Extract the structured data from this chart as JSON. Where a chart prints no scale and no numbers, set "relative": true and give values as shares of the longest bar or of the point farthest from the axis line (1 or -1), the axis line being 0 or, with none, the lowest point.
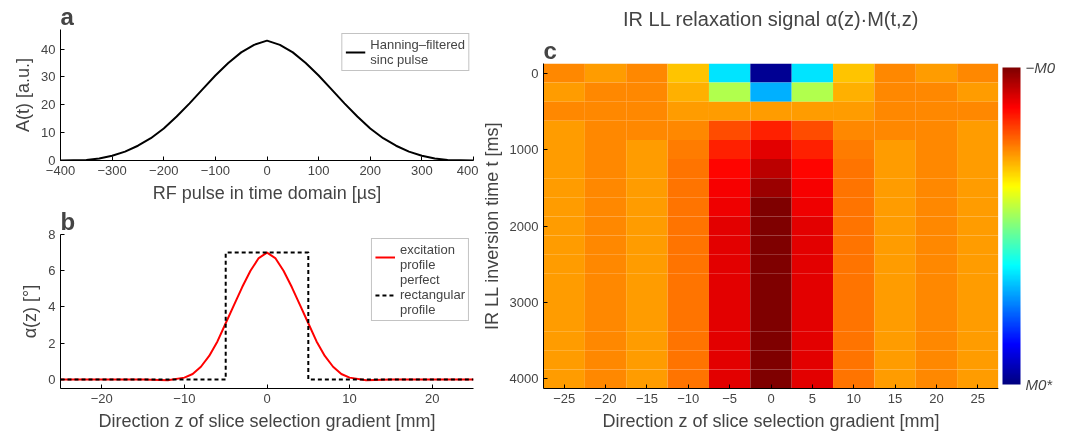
{
  "chart_data": [
    {
      "type": "line",
      "xlabel": "RF pulse in time domain [µs]",
      "ylabel": "A(t) [a.u.]",
      "annotations": [
        "a"
      ],
      "series": [
        {
          "name": "Hanning–filtered sinc pulse",
          "color": "#000000",
          "x": [
            -400,
            -350,
            -325,
            -300,
            -275,
            -250,
            -225,
            -200,
            -175,
            -150,
            -125,
            -100,
            -75,
            -50,
            -25,
            0,
            25,
            50,
            75,
            100,
            125,
            150,
            175,
            200,
            225,
            250,
            275,
            300,
            325,
            350,
            400
          ],
          "values": [
            0,
            0.2,
            0.7,
            1.7,
            3.2,
            5.3,
            8,
            11.5,
            15.8,
            20.5,
            25.5,
            30.5,
            35,
            38.8,
            41.5,
            43,
            41.5,
            38.8,
            35,
            30.5,
            25.5,
            20.5,
            15.8,
            11.5,
            8,
            5.3,
            3.2,
            1.7,
            0.7,
            0.2,
            0
          ]
        }
      ],
      "xlim": [
        -400,
        400
      ],
      "xticks": [
        -400,
        -300,
        -200,
        -100,
        0,
        100,
        200,
        300,
        400
      ],
      "ylim": [
        0,
        47
      ],
      "yticks": [
        0,
        10,
        20,
        30,
        40
      ],
      "grid": false,
      "legend": "top right",
      "line_style": "solid"
    },
    {
      "type": "line",
      "xlabel": "Direction z of slice selection gradient [mm]",
      "ylabel": "α(z) [°]",
      "annotations": [
        "b"
      ],
      "series": [
        {
          "name": "excitation profile",
          "color": "#ff0000",
          "line_style": "solid",
          "x": [
            -25,
            -15,
            -12,
            -10,
            -9,
            -8,
            -7,
            -6,
            -5,
            -4,
            -3,
            -2,
            -1,
            0,
            1,
            2,
            3,
            4,
            5,
            6,
            7,
            8,
            9,
            10,
            12,
            15,
            25
          ],
          "values": [
            0,
            0,
            -0.05,
            0.1,
            0.3,
            0.7,
            1.3,
            2.1,
            3.1,
            4.1,
            5.1,
            6,
            6.7,
            7,
            6.7,
            6,
            5.1,
            4.1,
            3.1,
            2.1,
            1.3,
            0.7,
            0.3,
            0.1,
            -0.05,
            0,
            0
          ]
        },
        {
          "name": "perfect rectangular profile",
          "color": "#000000",
          "line_style": "dashed",
          "x": [
            -25,
            -5,
            -5,
            5,
            5,
            25
          ],
          "values": [
            0,
            0,
            7,
            7,
            0,
            0
          ]
        }
      ],
      "xlim": [
        -25,
        25
      ],
      "xticks": [
        -20,
        -10,
        0,
        10,
        20
      ],
      "ylim": [
        -0.5,
        8
      ],
      "yticks": [
        0,
        2,
        4,
        6,
        8
      ],
      "grid": false,
      "legend": "top right"
    },
    {
      "type": "heatmap",
      "title": "IR LL relaxation signal α(z)·M(t,z)",
      "xlabel": "Direction z of slice selection gradient [mm]",
      "ylabel": "IR LL inversion time t [ms]",
      "annotations": [
        "c"
      ],
      "relative": true,
      "categories": [
        "−25",
        "−20",
        "−15",
        "−10",
        "−5",
        "0",
        "5",
        "10",
        "15",
        "20",
        "25"
      ],
      "y_categories": [
        "0",
        null,
        null,
        null,
        "1000",
        null,
        null,
        null,
        "2000",
        null,
        null,
        null,
        "3000",
        null,
        null,
        null,
        "4000"
      ],
      "cticks": [
        {
          "value": 0,
          "label": "M0*"
        },
        {
          "value": 1,
          "label": "−M0"
        }
      ],
      "cells": [
        [
          0.74,
          0.72,
          0.74,
          0.68,
          0.35,
          0.02,
          0.35,
          0.68,
          0.74,
          0.72,
          0.74
        ],
        [
          0.72,
          0.74,
          0.74,
          0.7,
          0.55,
          0.3,
          0.55,
          0.7,
          0.74,
          0.74,
          0.72
        ],
        [
          0.74,
          0.74,
          0.74,
          0.72,
          0.72,
          0.72,
          0.72,
          0.72,
          0.74,
          0.74,
          0.74
        ],
        [
          0.72,
          0.74,
          0.74,
          0.74,
          0.8,
          0.84,
          0.8,
          0.74,
          0.74,
          0.74,
          0.72
        ],
        [
          0.72,
          0.74,
          0.72,
          0.75,
          0.84,
          0.9,
          0.84,
          0.75,
          0.72,
          0.74,
          0.72
        ],
        [
          0.72,
          0.74,
          0.72,
          0.76,
          0.87,
          0.94,
          0.87,
          0.76,
          0.72,
          0.74,
          0.72
        ],
        [
          0.72,
          0.74,
          0.72,
          0.76,
          0.88,
          0.97,
          0.88,
          0.76,
          0.72,
          0.74,
          0.72
        ],
        [
          0.72,
          0.74,
          0.72,
          0.76,
          0.89,
          1,
          0.89,
          0.76,
          0.72,
          0.74,
          0.72
        ],
        [
          0.72,
          0.74,
          0.72,
          0.76,
          0.9,
          1,
          0.9,
          0.76,
          0.72,
          0.74,
          0.72
        ],
        [
          0.72,
          0.74,
          0.72,
          0.76,
          0.9,
          1,
          0.9,
          0.76,
          0.72,
          0.74,
          0.72
        ],
        [
          0.72,
          0.74,
          0.72,
          0.76,
          0.9,
          1,
          0.9,
          0.76,
          0.72,
          0.74,
          0.72
        ],
        [
          0.72,
          0.74,
          0.72,
          0.76,
          0.9,
          1,
          0.9,
          0.76,
          0.72,
          0.74,
          0.72
        ],
        [
          0.72,
          0.74,
          0.72,
          0.76,
          0.9,
          1,
          0.9,
          0.76,
          0.72,
          0.74,
          0.72
        ],
        [
          0.72,
          0.74,
          0.72,
          0.76,
          0.9,
          1,
          0.9,
          0.76,
          0.72,
          0.74,
          0.72
        ],
        [
          0.72,
          0.74,
          0.72,
          0.76,
          0.9,
          1,
          0.9,
          0.76,
          0.72,
          0.74,
          0.72
        ],
        [
          0.72,
          0.74,
          0.72,
          0.76,
          0.9,
          1,
          0.9,
          0.76,
          0.72,
          0.74,
          0.72
        ],
        [
          0.72,
          0.74,
          0.72,
          0.76,
          0.9,
          1,
          0.9,
          0.76,
          0.72,
          0.74,
          0.72
        ]
      ]
    }
  ]
}
